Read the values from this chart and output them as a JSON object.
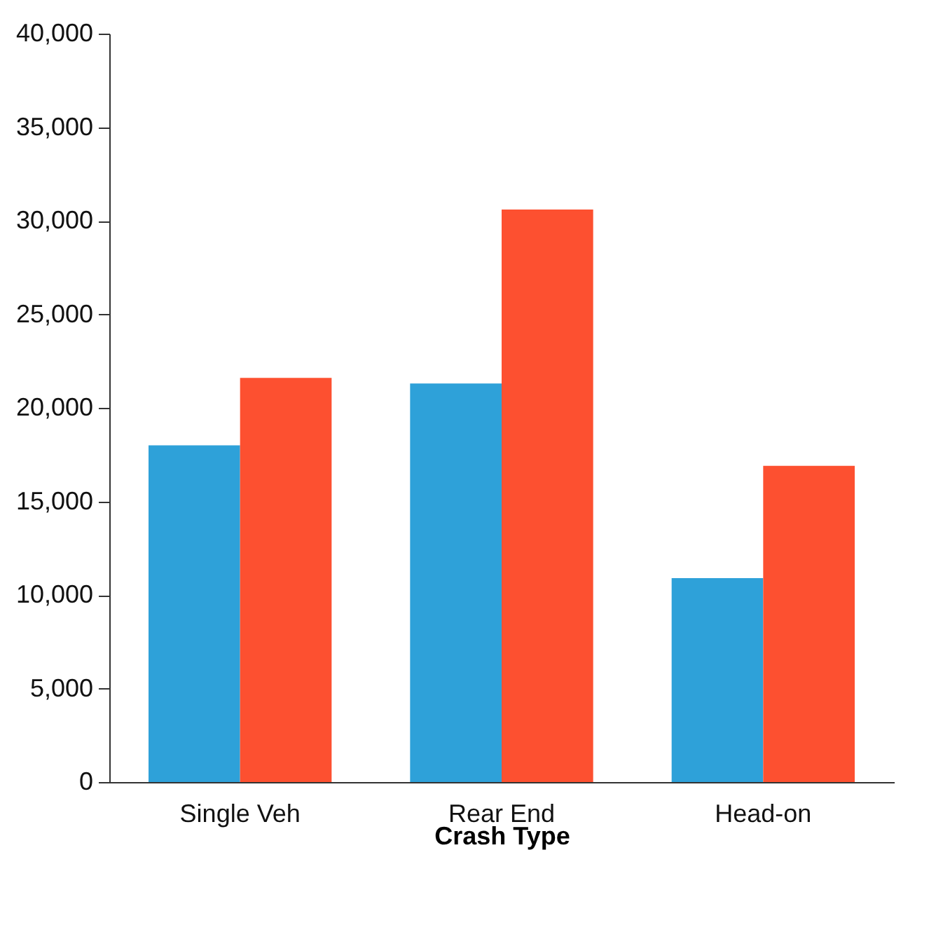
{
  "chart_data": {
    "type": "bar",
    "xlabel": "Crash Type",
    "categories": [
      "Single Veh",
      "Rear End",
      "Head-on"
    ],
    "series": [
      {
        "color": "#2ea1d9",
        "values": [
          18000,
          21300,
          10900
        ]
      },
      {
        "color": "#fd5030",
        "values": [
          21600,
          30600,
          16900
        ]
      }
    ],
    "ylim": [
      0,
      40000
    ],
    "yticks": [
      0,
      {
        "value": 5000,
        "label": "5,000"
      },
      {
        "value": 10000,
        "label": "10,000"
      },
      {
        "value": 15000,
        "label": "15,000"
      },
      {
        "value": 20000,
        "label": "20,000"
      },
      {
        "value": 25000,
        "label": "25,000"
      },
      {
        "value": 30000,
        "label": "30,000"
      },
      {
        "value": 35000,
        "label": "35,000"
      },
      {
        "value": 40000,
        "label": "40,000"
      }
    ],
    "grid": false,
    "legend": false
  }
}
